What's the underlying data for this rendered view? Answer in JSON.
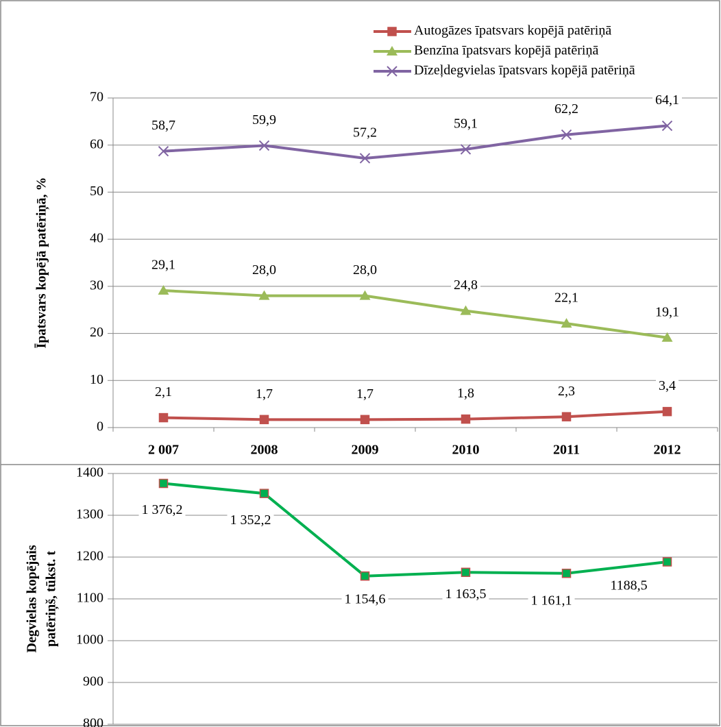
{
  "chart_data": [
    {
      "type": "line",
      "y_label": "Īpatsvars kopējā patēriņā, %",
      "categories": [
        "2 007",
        "2008",
        "2009",
        "2010",
        "2011",
        "2012"
      ],
      "ylim": [
        0,
        70
      ],
      "yticks": [
        0,
        10,
        20,
        30,
        40,
        50,
        60,
        70
      ],
      "grid": true,
      "legend": "top-right",
      "series": [
        {
          "name": "Autogāzes īpatsvars kopējā patēriņā",
          "color": "#c0504d",
          "marker": "square",
          "values": [
            2.1,
            1.7,
            1.7,
            1.8,
            2.3,
            3.4
          ],
          "value_labels": [
            "2,1",
            "1,7",
            "1,7",
            "1,8",
            "2,3",
            "3,4"
          ]
        },
        {
          "name": "Benzīna īpatsvars kopējā patēriņā",
          "color": "#9bbb59",
          "marker": "triangle",
          "values": [
            29.1,
            28.0,
            28.0,
            24.8,
            22.1,
            19.1
          ],
          "value_labels": [
            "29,1",
            "28,0",
            "28,0",
            "24,8",
            "22,1",
            "19,1"
          ]
        },
        {
          "name": "Dīzeļdegvielas īpatsvars kopējā patēriņā",
          "color": "#8064a2",
          "marker": "x",
          "values": [
            58.7,
            59.9,
            57.2,
            59.1,
            62.2,
            64.1
          ],
          "value_labels": [
            "58,7",
            "59,9",
            "57,2",
            "59,1",
            "62,2",
            "64,1"
          ]
        }
      ]
    },
    {
      "type": "line",
      "y_label": [
        "Degvielas kopējais",
        "patēriņš, tūkst. t"
      ],
      "ylim": [
        800,
        1400
      ],
      "yticks": [
        800,
        900,
        1000,
        1100,
        1200,
        1300,
        1400
      ],
      "grid": true,
      "series": [
        {
          "color": "#00b050",
          "marker_color": "#c0504d",
          "marker": "square",
          "values": [
            1376.2,
            1352.2,
            1154.6,
            1163.5,
            1161.1,
            1188.5
          ],
          "value_labels": [
            "1 376,2",
            "1 352,2",
            "1 154,6",
            "1 163,5",
            "1 161,1",
            "1188,5"
          ]
        }
      ]
    }
  ]
}
